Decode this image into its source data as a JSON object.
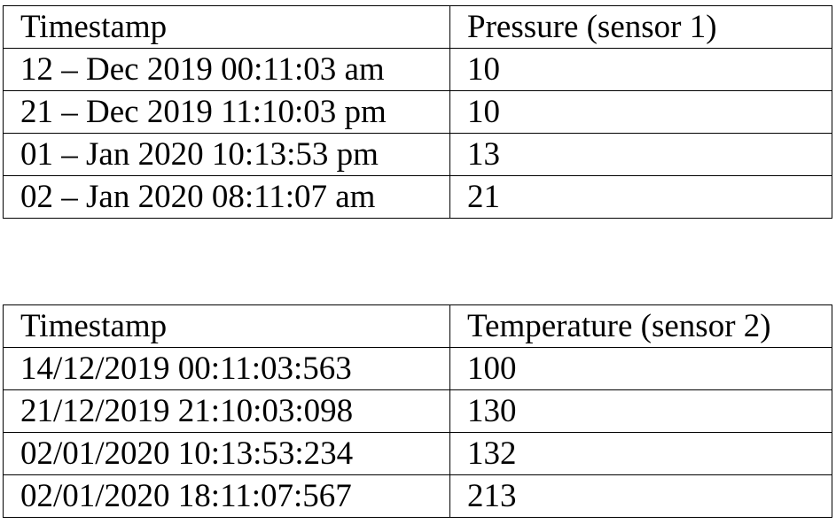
{
  "tables": [
    {
      "headers": [
        "Timestamp",
        "Pressure (sensor 1)"
      ],
      "rows": [
        [
          "12 – Dec 2019 00:11:03 am",
          "10"
        ],
        [
          "21 – Dec 2019 11:10:03 pm",
          "10"
        ],
        [
          "01 – Jan 2020 10:13:53 pm",
          "13"
        ],
        [
          "02 – Jan 2020 08:11:07 am",
          "21"
        ]
      ]
    },
    {
      "headers": [
        "Timestamp",
        "Temperature (sensor 2)"
      ],
      "rows": [
        [
          "14/12/2019 00:11:03:563",
          "100"
        ],
        [
          "21/12/2019 21:10:03:098",
          "130"
        ],
        [
          "02/01/2020 10:13:53:234",
          "132"
        ],
        [
          "02/01/2020 18:11:07:567",
          "213"
        ]
      ]
    }
  ]
}
